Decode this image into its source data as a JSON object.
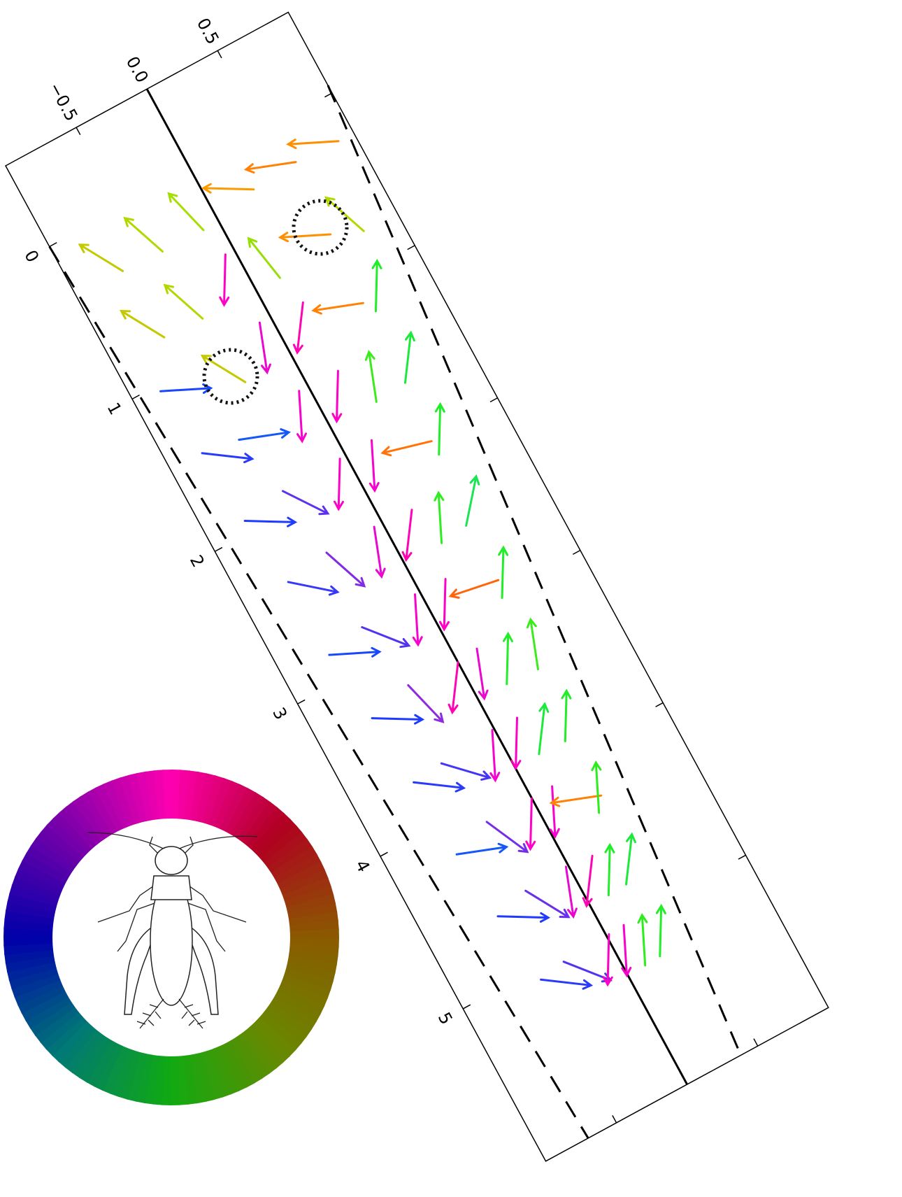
{
  "chart_data": {
    "type": "quiver",
    "xlim": [
      -0.53,
      6.0
    ],
    "ylim": [
      -1.0,
      1.0
    ],
    "xticks": [
      0,
      1,
      2,
      3,
      4,
      5
    ],
    "yticks": [
      {
        "value": -0.5,
        "label": "−0.5"
      },
      {
        "value": 0,
        "label": "0.0"
      },
      0.5
    ],
    "lines": [
      {
        "style": "solid",
        "x": [
          -0.53,
          6.0
        ],
        "y": [
          0,
          0
        ]
      },
      {
        "style": "dashed",
        "x": [
          0,
          6.0
        ],
        "y": [
          -1.0,
          -0.7
        ]
      },
      {
        "style": "dashed",
        "x": [
          -0.05,
          6.0
        ],
        "y": [
          1.0,
          0.38
        ]
      }
    ],
    "x": [
      0.2,
      0.2,
      0.2,
      0.2,
      0.2,
      0.2,
      0.65,
      0.65,
      0.65,
      0.65,
      0.65,
      0.65,
      1.1,
      1.1,
      1.1,
      1.1,
      1.1,
      1.1,
      1.55,
      1.55,
      1.55,
      1.55,
      1.55,
      1.55,
      2.0,
      2.0,
      2.0,
      2.0,
      2.0,
      2.0,
      2.45,
      2.45,
      2.45,
      2.45,
      2.45,
      2.45,
      2.9,
      2.9,
      2.9,
      2.9,
      2.9,
      2.9,
      3.35,
      3.35,
      3.35,
      3.35,
      3.35,
      3.35,
      3.8,
      3.8,
      3.8,
      3.8,
      3.8,
      3.8,
      4.25,
      4.25,
      4.25,
      4.25,
      4.25,
      4.25,
      4.7,
      4.7,
      4.7,
      4.7,
      4.7,
      4.7,
      5.15,
      5.15,
      5.15,
      5.15,
      5.15,
      5.15
    ],
    "y": [
      -0.75,
      -0.45,
      -0.15,
      0.15,
      0.45,
      0.75,
      -0.72,
      -0.43,
      -0.14,
      0.14,
      0.43,
      0.71,
      -0.68,
      -0.41,
      -0.13,
      0.13,
      0.4,
      0.67,
      -0.65,
      -0.39,
      -0.13,
      0.13,
      0.38,
      0.63,
      -0.61,
      -0.36,
      -0.12,
      0.12,
      0.36,
      0.59,
      -0.57,
      -0.34,
      -0.11,
      0.11,
      0.33,
      0.55,
      -0.54,
      -0.32,
      -0.1,
      0.1,
      0.31,
      0.51,
      -0.5,
      -0.3,
      -0.09,
      0.09,
      0.28,
      0.47,
      -0.47,
      -0.28,
      -0.08,
      0.08,
      0.26,
      0.43,
      -0.43,
      -0.25,
      -0.08,
      0.08,
      0.24,
      0.39,
      -0.4,
      -0.23,
      -0.07,
      0.07,
      0.21,
      0.35,
      -0.36,
      -0.21,
      -0.06,
      0.06,
      0.19,
      0.31
    ],
    "angle": [
      210,
      200,
      195,
      -120,
      -110,
      -115,
      -150,
      -160,
      -30,
      190,
      -115,
      200,
      65,
      -150,
      -20,
      -35,
      -110,
      150,
      55,
      70,
      -25,
      -30,
      160,
      145,
      60,
      35,
      -30,
      -25,
      -105,
      150,
      50,
      20,
      -20,
      -35,
      155,
      140,
      65,
      40,
      -25,
      -30,
      -100,
      150,
      60,
      15,
      -35,
      -20,
      150,
      160,
      55,
      45,
      -25,
      -30,
      145,
      150,
      70,
      25,
      -30,
      -25,
      -110,
      155,
      60,
      30,
      -20,
      -35,
      150,
      145,
      55,
      40,
      -30,
      -25,
      155,
      150
    ],
    "colormap": [
      "#ff00cc",
      "#ff1a1a",
      "#ff9900",
      "#aadd00",
      "#22ee22",
      "#00ccdd",
      "#1a3cff",
      "#8a2be2"
    ],
    "wheel_colors": [
      "#ff00b0",
      "#b00020",
      "#8a5a00",
      "#6a8800",
      "#11aa11",
      "#007777",
      "#0000aa",
      "#7700aa"
    ]
  }
}
